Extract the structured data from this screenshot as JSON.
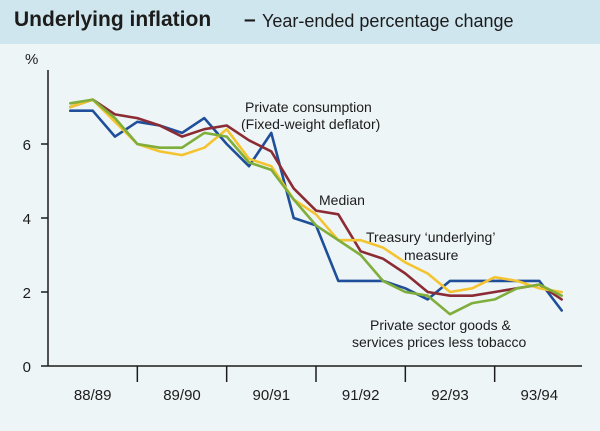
{
  "chart_data": {
    "type": "line",
    "title": "Underlying inflation",
    "subtitle": "Year-ended percentage change",
    "ylabel": "%",
    "xlabel": "",
    "ylim": [
      0,
      8
    ],
    "yticks": [
      0,
      2,
      4,
      6
    ],
    "xlim": [
      0,
      24
    ],
    "grid": false,
    "categories": [
      "88/89",
      "89/90",
      "90/91",
      "91/92",
      "92/93",
      "93/94"
    ],
    "category_boundaries": [
      0,
      4,
      8,
      12,
      16,
      20,
      24
    ],
    "x": [
      1,
      2,
      3,
      4,
      5,
      6,
      7,
      8,
      9,
      10,
      11,
      12,
      13,
      14,
      15,
      16,
      17,
      18,
      19,
      20,
      21,
      22,
      23
    ],
    "series": [
      {
        "name": "Private consumption (Fixed-weight deflator)",
        "color": "#1f4f9a",
        "values": [
          6.9,
          6.9,
          6.2,
          6.6,
          6.5,
          6.3,
          6.7,
          6.0,
          5.4,
          6.3,
          4.0,
          3.8,
          2.3,
          2.3,
          2.3,
          2.1,
          1.8,
          2.3,
          2.3,
          2.3,
          2.3,
          2.3,
          1.5
        ]
      },
      {
        "name": "Median",
        "color": "#8b2c35",
        "values": [
          7.0,
          7.2,
          6.8,
          6.7,
          6.5,
          6.2,
          6.4,
          6.5,
          6.1,
          5.8,
          4.8,
          4.2,
          4.1,
          3.1,
          2.9,
          2.5,
          2.0,
          1.9,
          1.9,
          2.0,
          2.1,
          2.2,
          1.8
        ]
      },
      {
        "name": "Treasury 'underlying' measure",
        "color": "#f4c430",
        "values": [
          7.0,
          7.2,
          6.6,
          6.0,
          5.8,
          5.7,
          5.9,
          6.4,
          5.6,
          5.4,
          4.5,
          4.1,
          3.4,
          3.4,
          3.2,
          2.8,
          2.5,
          2.0,
          2.1,
          2.4,
          2.3,
          2.1,
          2.0
        ]
      },
      {
        "name": "Private sector goods & services prices less tobacco",
        "color": "#7fae3a",
        "values": [
          7.1,
          7.2,
          6.7,
          6.0,
          5.9,
          5.9,
          6.3,
          6.2,
          5.5,
          5.3,
          4.5,
          3.8,
          3.4,
          3.0,
          2.3,
          2.0,
          1.9,
          1.4,
          1.7,
          1.8,
          2.1,
          2.2,
          1.9
        ]
      }
    ],
    "annotations": {
      "private_consumption": [
        "Private consumption",
        "(Fixed-weight deflator)"
      ],
      "median": [
        "Median"
      ],
      "treasury": [
        "Treasury ‘underlying’",
        "measure"
      ],
      "private_sector": [
        "Private sector goods &",
        "services prices less tobacco"
      ]
    }
  }
}
